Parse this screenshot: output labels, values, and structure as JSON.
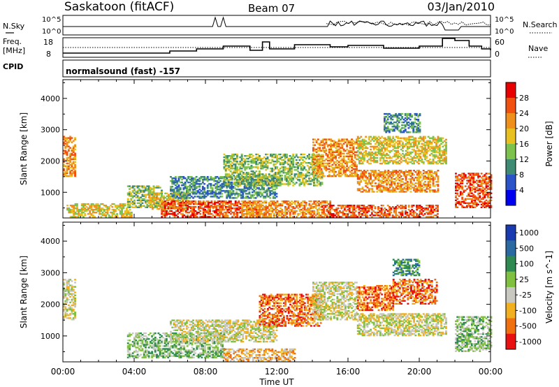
{
  "header": {
    "site": "Saskatoon (fitACF)",
    "beam": "Beam 07",
    "date": "03/Jan/2010"
  },
  "strip": {
    "nsky_label": "N.Sky",
    "nsky_ticks": [
      "10^5",
      "10^0"
    ],
    "nsearch_label": "N.Search",
    "nsearch_ticks": [
      "10^5",
      "10^0"
    ],
    "freq_label_1": "Freq.",
    "freq_label_2": "[MHz]",
    "freq_ticks": [
      "18",
      "8"
    ],
    "nave_label": "Nave",
    "nave_ticks": [
      "60",
      "0"
    ],
    "cpid_label": "CPID",
    "mode_text": "normalsound (fast) -157"
  },
  "chart_data": [
    {
      "type": "heatmap",
      "panel": "power",
      "xlabel": "Time UT",
      "ylabel": "Slant Range [km]",
      "x_ticks": [
        "00:00",
        "04:00",
        "08:00",
        "12:00",
        "16:00",
        "20:00",
        "00:00"
      ],
      "x_hours": [
        0,
        4,
        8,
        12,
        16,
        20,
        24
      ],
      "y_ticks": [
        1000,
        2000,
        3000,
        4000
      ],
      "ylim": [
        180,
        4600
      ],
      "colorbar_label": "Power [dB]",
      "colorbar_ticks": [
        4,
        8,
        12,
        16,
        20,
        24,
        28
      ],
      "colors": [
        "#0000ee",
        "#2a54c8",
        "#3e8a72",
        "#7ec24e",
        "#e8c020",
        "#f0901c",
        "#f05010",
        "#e80000"
      ],
      "regions": [
        {
          "t0": 0.0,
          "t1": 0.7,
          "r0": 1500,
          "r1": 2800,
          "level": 5
        },
        {
          "t0": 0.2,
          "t1": 3.8,
          "r0": 200,
          "r1": 650,
          "level": 4
        },
        {
          "t0": 3.6,
          "t1": 5.5,
          "r0": 500,
          "r1": 1200,
          "level": 3
        },
        {
          "t0": 4.8,
          "t1": 7.0,
          "r0": 450,
          "r1": 950,
          "level": 4
        },
        {
          "t0": 5.5,
          "t1": 11.0,
          "r0": 200,
          "r1": 700,
          "level": 6
        },
        {
          "t0": 6.0,
          "t1": 12.0,
          "r0": 800,
          "r1": 1500,
          "level": 2
        },
        {
          "t0": 9.0,
          "t1": 14.5,
          "r0": 1200,
          "r1": 2200,
          "level": 3
        },
        {
          "t0": 10.0,
          "t1": 15.0,
          "r0": 200,
          "r1": 700,
          "level": 5
        },
        {
          "t0": 14.0,
          "t1": 16.5,
          "r0": 1500,
          "r1": 2700,
          "level": 5
        },
        {
          "t0": 14.5,
          "t1": 21.0,
          "r0": 200,
          "r1": 600,
          "level": 6
        },
        {
          "t0": 16.5,
          "t1": 21.5,
          "r0": 1900,
          "r1": 2800,
          "level": 4
        },
        {
          "t0": 16.5,
          "t1": 21.0,
          "r0": 1000,
          "r1": 1700,
          "level": 5
        },
        {
          "t0": 18.0,
          "t1": 20.0,
          "r0": 2900,
          "r1": 3500,
          "level": 2
        },
        {
          "t0": 22.0,
          "t1": 24.0,
          "r0": 500,
          "r1": 1600,
          "level": 6
        }
      ]
    },
    {
      "type": "heatmap",
      "panel": "velocity",
      "xlabel": "Time UT",
      "ylabel": "Slant Range [km]",
      "x_ticks": [
        "00:00",
        "04:00",
        "08:00",
        "12:00",
        "16:00",
        "20:00",
        "00:00"
      ],
      "x_hours": [
        0,
        4,
        8,
        12,
        16,
        20,
        24
      ],
      "y_ticks": [
        1000,
        2000,
        3000,
        4000
      ],
      "ylim": [
        180,
        4600
      ],
      "colorbar_label": "Velocity [m s^-1]",
      "colorbar_ticks": [
        "1000",
        "500",
        "100",
        "25",
        "-25",
        "-100",
        "-500",
        "-1000"
      ],
      "colors": [
        "#1a3ab0",
        "#2a6aa0",
        "#2e8a50",
        "#80c040",
        "#c8c8c0",
        "#f0b020",
        "#f07010",
        "#e81010"
      ],
      "regions": [
        {
          "t0": 0.0,
          "t1": 0.7,
          "r0": 1500,
          "r1": 2800,
          "level": 4
        },
        {
          "t0": 3.6,
          "t1": 9.0,
          "r0": 300,
          "r1": 1100,
          "level": 3
        },
        {
          "t0": 6.0,
          "t1": 12.0,
          "r0": 800,
          "r1": 1500,
          "level": 4
        },
        {
          "t0": 9.0,
          "t1": 13.0,
          "r0": 200,
          "r1": 600,
          "level": 5
        },
        {
          "t0": 11.0,
          "t1": 14.5,
          "r0": 1300,
          "r1": 2300,
          "level": 6
        },
        {
          "t0": 14.0,
          "t1": 16.5,
          "r0": 1500,
          "r1": 2700,
          "level": 4
        },
        {
          "t0": 16.5,
          "t1": 18.5,
          "r0": 1800,
          "r1": 2600,
          "level": 6
        },
        {
          "t0": 16.5,
          "t1": 21.5,
          "r0": 1000,
          "r1": 1700,
          "level": 4
        },
        {
          "t0": 18.5,
          "t1": 21.0,
          "r0": 2000,
          "r1": 2800,
          "level": 6
        },
        {
          "t0": 18.5,
          "t1": 20.0,
          "r0": 2900,
          "r1": 3400,
          "level": 2
        },
        {
          "t0": 22.0,
          "t1": 24.0,
          "r0": 500,
          "r1": 1600,
          "level": 3
        }
      ]
    }
  ]
}
